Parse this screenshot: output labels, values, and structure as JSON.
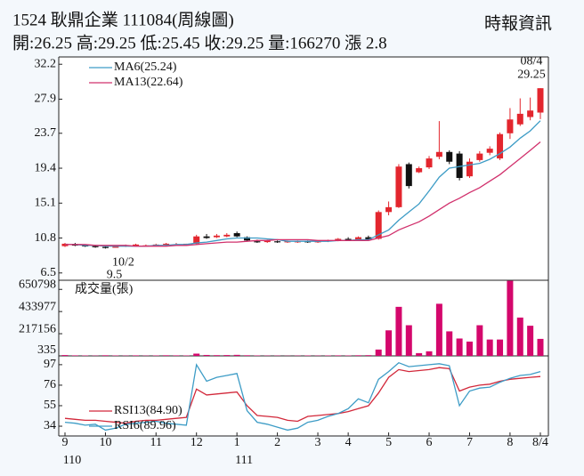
{
  "header": {
    "title": "1524 耿鼎企業 111084(周線圖)",
    "source": "時報資訊",
    "summary": "開:26.25 高:29.25 低:25.45 收:29.25 量:166270 漲 2.8"
  },
  "chart_data": [
    {
      "type": "candlestick",
      "categories": [
        "9",
        null,
        null,
        null,
        "10",
        null,
        null,
        null,
        null,
        "11",
        null,
        null,
        null,
        "12",
        null,
        null,
        null,
        "1",
        null,
        null,
        null,
        "2",
        null,
        null,
        null,
        "3",
        null,
        null,
        "4",
        null,
        null,
        null,
        "5",
        null,
        null,
        null,
        "6",
        null,
        null,
        null,
        "7",
        null,
        null,
        null,
        "8",
        null,
        null,
        "8/4"
      ],
      "categories2": [
        "110",
        null,
        null,
        null,
        null,
        null,
        null,
        null,
        null,
        null,
        null,
        null,
        null,
        null,
        null,
        null,
        null,
        "111",
        null,
        null,
        null,
        null,
        null,
        null,
        null,
        null,
        null,
        null,
        null,
        null,
        null,
        null,
        null,
        null,
        null,
        null,
        null,
        null,
        null,
        null,
        null,
        null,
        null,
        null,
        null,
        null,
        null,
        null
      ],
      "open": [
        9.8,
        10.0,
        9.9,
        9.8,
        9.7,
        9.6,
        9.8,
        9.9,
        9.9,
        9.9,
        10.0,
        10.0,
        10.0,
        10.1,
        11.0,
        10.9,
        11.0,
        11.4,
        10.9,
        10.4,
        10.3,
        10.4,
        10.3,
        10.3,
        10.4,
        10.3,
        10.4,
        10.5,
        10.7,
        10.6,
        10.9,
        10.7,
        14.0,
        14.6,
        19.9,
        18.9,
        19.5,
        20.8,
        21.4,
        21.2,
        18.4,
        20.4,
        21.3,
        20.6,
        23.7,
        24.8,
        25.7,
        26.25
      ],
      "high": [
        10.2,
        10.2,
        10.0,
        9.9,
        9.8,
        9.9,
        10.0,
        10.1,
        10.0,
        10.1,
        10.2,
        10.2,
        10.1,
        11.2,
        11.3,
        11.3,
        11.4,
        11.6,
        11.0,
        10.6,
        10.6,
        10.5,
        10.5,
        10.5,
        10.5,
        10.5,
        10.6,
        10.8,
        10.9,
        11.0,
        11.1,
        14.2,
        15.3,
        19.9,
        20.1,
        19.6,
        20.9,
        25.2,
        21.6,
        21.5,
        20.6,
        21.5,
        22.1,
        23.8,
        26.8,
        28.0,
        28.1,
        29.25
      ],
      "low": [
        9.7,
        9.8,
        9.7,
        9.6,
        9.5,
        9.6,
        9.7,
        9.8,
        9.8,
        9.8,
        9.9,
        9.9,
        9.9,
        10.0,
        10.7,
        10.8,
        10.9,
        10.9,
        10.4,
        10.2,
        10.2,
        10.2,
        10.2,
        10.2,
        10.2,
        10.2,
        10.3,
        10.4,
        10.5,
        10.5,
        10.5,
        10.6,
        13.6,
        14.5,
        16.9,
        18.8,
        19.3,
        20.5,
        19.9,
        17.9,
        18.2,
        20.2,
        21.0,
        20.4,
        23.0,
        24.6,
        25.3,
        25.45
      ],
      "close": [
        10.1,
        9.9,
        9.8,
        9.7,
        9.6,
        9.8,
        9.9,
        10.0,
        9.9,
        10.0,
        10.1,
        10.0,
        10.1,
        11.0,
        10.8,
        11.1,
        11.2,
        11.0,
        10.5,
        10.3,
        10.5,
        10.3,
        10.4,
        10.4,
        10.3,
        10.4,
        10.5,
        10.7,
        10.6,
        10.9,
        10.6,
        14.0,
        14.6,
        19.6,
        17.2,
        19.4,
        20.6,
        21.4,
        20.2,
        18.2,
        20.2,
        21.2,
        21.8,
        23.6,
        25.4,
        26.1,
        26.5,
        29.25
      ],
      "up_color": "#e3262e",
      "down_color": "#111111",
      "series": [
        {
          "name": "MA6(25.24)",
          "color": "#3d9cc6",
          "values": [
            10.0,
            10.0,
            9.9,
            9.9,
            9.8,
            9.8,
            9.8,
            9.8,
            9.8,
            9.9,
            9.9,
            10.0,
            10.0,
            10.2,
            10.3,
            10.5,
            10.7,
            10.8,
            10.8,
            10.8,
            10.7,
            10.6,
            10.4,
            10.4,
            10.4,
            10.4,
            10.4,
            10.5,
            10.5,
            10.6,
            10.6,
            11.2,
            11.8,
            13.0,
            14.0,
            15.0,
            16.6,
            18.3,
            19.4,
            19.6,
            19.8,
            20.0,
            20.5,
            21.2,
            22.0,
            23.1,
            24.0,
            25.24
          ]
        },
        {
          "name": "MA13(22.64)",
          "color": "#d1306c",
          "values": [
            10.0,
            10.0,
            10.0,
            9.9,
            9.9,
            9.9,
            9.9,
            9.8,
            9.8,
            9.8,
            9.8,
            9.9,
            9.9,
            10.0,
            10.1,
            10.2,
            10.3,
            10.3,
            10.4,
            10.5,
            10.5,
            10.6,
            10.6,
            10.6,
            10.6,
            10.5,
            10.5,
            10.5,
            10.5,
            10.5,
            10.5,
            10.8,
            11.1,
            11.8,
            12.3,
            12.8,
            13.5,
            14.3,
            15.1,
            15.7,
            16.4,
            17.0,
            17.8,
            18.6,
            19.6,
            20.6,
            21.6,
            22.64
          ]
        }
      ],
      "annotations": [
        {
          "date": "10/2",
          "value": 9.5
        },
        {
          "date": "08/4",
          "value": 29.25
        }
      ],
      "ylim": [
        5.6,
        33.1
      ],
      "yticks": [
        32.2,
        27.9,
        23.7,
        19.4,
        15.1,
        10.8,
        6.5
      ]
    },
    {
      "type": "bar",
      "title": "成交量(張)",
      "color": "#d4076c",
      "values": [
        8000,
        5000,
        4000,
        3000,
        6000,
        4000,
        3000,
        5000,
        3000,
        4000,
        6000,
        5000,
        4000,
        22000,
        9000,
        7000,
        8000,
        10000,
        6000,
        4000,
        3000,
        3000,
        2000,
        3000,
        4000,
        3000,
        4000,
        5000,
        4000,
        6000,
        7000,
        62000,
        250000,
        480000,
        300000,
        27000,
        45000,
        510000,
        240000,
        170000,
        140000,
        300000,
        160000,
        160000,
        735000,
        375000,
        295000,
        166270
      ],
      "ylim": [
        0,
        740000
      ],
      "yticks": [
        650798,
        433977,
        217156,
        335
      ]
    },
    {
      "type": "line",
      "series": [
        {
          "name": "RSI13(84.90)",
          "color": "#d2283a",
          "values": [
            42,
            41,
            40,
            40,
            39,
            38,
            37,
            39,
            40,
            40,
            41,
            42,
            43,
            72,
            66,
            67,
            68,
            69,
            55,
            45,
            44,
            43,
            40,
            39,
            44,
            45,
            46,
            47,
            49,
            52,
            55,
            68,
            84,
            92,
            90,
            91,
            92,
            94,
            93,
            70,
            74,
            76,
            77,
            80,
            82,
            83,
            84,
            84.9
          ]
        },
        {
          "name": "RSI6(89.96)",
          "color": "#3d9cc6",
          "values": [
            38,
            37,
            35,
            36,
            30,
            32,
            36,
            37,
            38,
            39,
            37,
            36,
            35,
            97,
            80,
            84,
            86,
            88,
            50,
            38,
            36,
            33,
            30,
            32,
            38,
            40,
            44,
            47,
            52,
            62,
            58,
            82,
            90,
            99,
            95,
            96,
            97,
            98,
            96,
            55,
            70,
            73,
            74,
            79,
            83,
            86,
            87,
            89.96
          ]
        }
      ],
      "ylim": [
        24,
        106
      ],
      "yticks": [
        97,
        76,
        55,
        34
      ]
    }
  ]
}
